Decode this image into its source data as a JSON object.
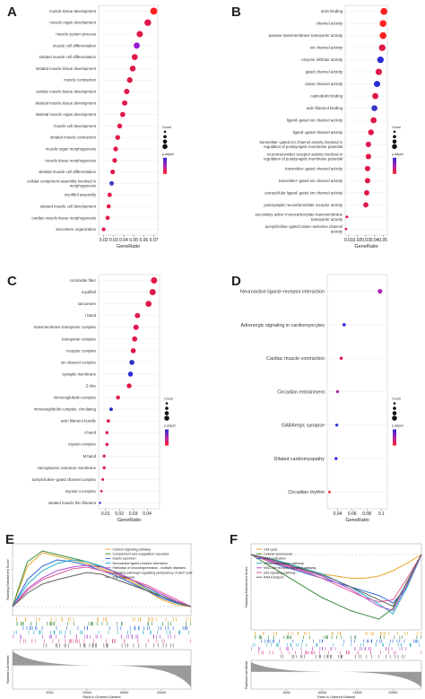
{
  "figure": {
    "panels": [
      "A",
      "B",
      "C",
      "D",
      "E",
      "F"
    ]
  },
  "chart_data": [
    {
      "panel": "A",
      "type": "scatter",
      "title": "",
      "xlabel": "GeneRatio",
      "ylabel": "",
      "xticks": [
        0.02,
        0.03,
        0.04,
        0.05,
        0.06,
        0.07
      ],
      "xlim": [
        0.015,
        0.074
      ],
      "legend": {
        "position": "right",
        "size_title": "Count",
        "color_title": "p.adjust"
      },
      "categories": [
        "muscle tissue development",
        "muscle organ development",
        "muscle system process",
        "muscle cell differentiation",
        "striated muscle cell differentiation",
        "striated muscle tissue development",
        "muscle contraction",
        "cardiac muscle tissue development",
        "skeletal muscle tissue development",
        "skeletal muscle organ development",
        "muscle cell development",
        "striated muscle contraction",
        "muscle organ morphogenesis",
        "muscle tissue morphogenesis",
        "skeletal muscle cell differentiation",
        "cellular component assembly involved in morphogenesis",
        "myofibril assembly",
        "striated muscle cell development",
        "cardiac muscle tissue morphogenesis",
        "sarcomere organization"
      ],
      "x": [
        0.07,
        0.064,
        0.056,
        0.053,
        0.051,
        0.049,
        0.046,
        0.043,
        0.041,
        0.039,
        0.036,
        0.034,
        0.032,
        0.031,
        0.029,
        0.028,
        0.026,
        0.025,
        0.024,
        0.02
      ],
      "count": [
        40,
        36,
        32,
        30,
        29,
        28,
        26,
        24,
        23,
        22,
        20,
        19,
        18,
        18,
        17,
        16,
        15,
        14,
        14,
        11
      ],
      "color": [
        "#ff2020",
        "#e0184a",
        "#e0184a",
        "#9a1ad0",
        "#e0184a",
        "#e0184a",
        "#e0184a",
        "#e0184a",
        "#e0184a",
        "#e0184a",
        "#e0184a",
        "#e0184a",
        "#e0184a",
        "#e0184a",
        "#e0184a",
        "#3838c8",
        "#e0184a",
        "#e0184a",
        "#e0184a",
        "#e0184a"
      ]
    },
    {
      "panel": "B",
      "type": "scatter",
      "title": "",
      "xlabel": "GeneRatio",
      "ylabel": "",
      "xticks": [
        0.01,
        0.02,
        0.03,
        0.04,
        0.05
      ],
      "xlim": [
        0.006,
        0.055
      ],
      "legend": {
        "position": "right",
        "size_title": "Count",
        "color_title": "p.adjust"
      },
      "categories": [
        "actin binding",
        "channel activity",
        "passive transmembrane transporter activity",
        "ion channel activity",
        "enzyme inhibitor activity",
        "gated channel activity",
        "cation channel activity",
        "calmodulin binding",
        "actin filament binding",
        "ligand−gated ion channel activity",
        "ligand−gated channel activity",
        "transmitter−gated ion channel activity involved in regulation of postsynaptic membrane potential",
        "neurotransmitter receptor activity involved in regulation of postsynaptic membrane potential",
        "transmitter−gated channel activity",
        "transmitter−gated ion channel activity",
        "extracellular ligand−gated ion channel activity",
        "postsynaptic neurotransmitter receptor activity",
        "secondary active monocarboxylate transmembrane transporter activity",
        "acetylcholine−gated cation−selective channel activity"
      ],
      "x": [
        0.051,
        0.05,
        0.05,
        0.049,
        0.047,
        0.045,
        0.043,
        0.041,
        0.04,
        0.039,
        0.036,
        0.033,
        0.033,
        0.032,
        0.032,
        0.031,
        0.03,
        0.008,
        0.007
      ],
      "count": [
        38,
        37,
        37,
        36,
        34,
        33,
        32,
        30,
        29,
        29,
        27,
        24,
        24,
        24,
        24,
        23,
        22,
        6,
        5
      ],
      "color": [
        "#ff2020",
        "#ff2020",
        "#ff2020",
        "#e0184a",
        "#2a2ad8",
        "#e0184a",
        "#2a2ad8",
        "#e0184a",
        "#3838c8",
        "#e0184a",
        "#e0184a",
        "#e0184a",
        "#e0184a",
        "#e0184a",
        "#e0184a",
        "#e0184a",
        "#e0184a",
        "#e0184a",
        "#e0184a"
      ]
    },
    {
      "panel": "C",
      "type": "scatter",
      "title": "",
      "xlabel": "GeneRatio",
      "ylabel": "",
      "xticks": [
        0.01,
        0.02,
        0.03,
        0.04
      ],
      "xlim": [
        0.005,
        0.049
      ],
      "legend": {
        "position": "right",
        "size_title": "Count",
        "color_title": "p.adjust"
      },
      "categories": [
        "contractile fiber",
        "myofibril",
        "sarcomere",
        "I band",
        "transmembrane transporter complex",
        "transporter complex",
        "receptor complex",
        "ion channel complex",
        "synaptic membrane",
        "Z disc",
        "immunoglobulin complex",
        "immunoglobulin complex, circulating",
        "actin filament bundle",
        "A band",
        "myosin complex",
        "M band",
        "sarcoplasmic reticulum membrane",
        "acetylcholine−gated channel complex",
        "myosin II complex",
        "striated muscle thin filament"
      ],
      "x": [
        0.045,
        0.044,
        0.041,
        0.033,
        0.032,
        0.031,
        0.03,
        0.029,
        0.028,
        0.027,
        0.019,
        0.014,
        0.012,
        0.011,
        0.011,
        0.009,
        0.009,
        0.008,
        0.007,
        0.006
      ],
      "count": [
        32,
        31,
        29,
        23,
        23,
        22,
        21,
        21,
        20,
        19,
        13,
        10,
        9,
        8,
        8,
        7,
        7,
        6,
        5,
        4
      ],
      "color": [
        "#e0184a",
        "#e0184a",
        "#e0184a",
        "#e0184a",
        "#e0184a",
        "#e0184a",
        "#e0184a",
        "#3030c8",
        "#2a2ad8",
        "#e0184a",
        "#e0184a",
        "#3030c8",
        "#e0184a",
        "#e0184a",
        "#e0184a",
        "#e0184a",
        "#e0184a",
        "#e0184a",
        "#e0184a",
        "#2a2ad8"
      ]
    },
    {
      "panel": "D",
      "type": "scatter",
      "title": "",
      "xlabel": "GeneRatio",
      "ylabel": "",
      "xticks": [
        0.04,
        0.06,
        0.08,
        0.1
      ],
      "xlim": [
        0.026,
        0.108
      ],
      "legend": {
        "position": "right",
        "size_title": "Count",
        "color_title": "p.adjust"
      },
      "categories": [
        "Neuroactive ligand−receptor interaction",
        "Adrenergic signaling in cardiomyocytes",
        "Cardiac muscle contraction",
        "Circadian entrainment",
        "GABAergic synapse",
        "Dilated cardiomyopathy",
        "Circadian rhythm"
      ],
      "x": [
        0.098,
        0.049,
        0.045,
        0.04,
        0.039,
        0.038,
        0.029
      ],
      "count": [
        18,
        9,
        8,
        7,
        7,
        7,
        5
      ],
      "color": [
        "#b028b0",
        "#2a2ad8",
        "#e0184a",
        "#a020a0",
        "#2a2ad8",
        "#2a2ad8",
        "#ff2020"
      ]
    },
    {
      "panel": "E",
      "type": "line",
      "title": "",
      "xlabel": "Rank in Ordered Dataset",
      "ylabel": "Running Enrichment Score",
      "ylabel2": "Ranked List Metric",
      "xticks": [
        5000,
        10000,
        15000,
        20000
      ],
      "xlim": [
        0,
        24000
      ],
      "ylim": [
        -0.1,
        0.7
      ],
      "legend": {
        "position": "top-right"
      },
      "series": [
        {
          "name": "Calcium signaling pathway",
          "color": "#e8a72a",
          "x": [
            0,
            2000,
            4000,
            6000,
            8000,
            10000,
            12000,
            14000,
            16000,
            18000,
            20000,
            22000,
            24000
          ],
          "values": [
            0,
            0.45,
            0.6,
            0.56,
            0.52,
            0.48,
            0.42,
            0.36,
            0.28,
            0.18,
            0.08,
            0.02,
            0
          ]
        },
        {
          "name": "Complement and coagulation cascades",
          "color": "#3a8a3a",
          "x": [
            0,
            2000,
            4000,
            6000,
            8000,
            10000,
            12000,
            14000,
            16000,
            18000,
            20000,
            22000,
            24000
          ],
          "values": [
            0,
            0.5,
            0.62,
            0.58,
            0.54,
            0.5,
            0.44,
            0.38,
            0.3,
            0.2,
            0.1,
            0.04,
            0
          ]
        },
        {
          "name": "Insulin secretion",
          "color": "#2a6ad8",
          "x": [
            0,
            2000,
            4000,
            6000,
            8000,
            10000,
            12000,
            14000,
            16000,
            18000,
            20000,
            22000,
            24000
          ],
          "values": [
            0,
            0.3,
            0.45,
            0.52,
            0.5,
            0.46,
            0.4,
            0.34,
            0.26,
            0.18,
            0.1,
            0.04,
            0
          ]
        },
        {
          "name": "Neuroactive ligand-receptor interaction",
          "color": "#2ab0c8",
          "x": [
            0,
            2000,
            4000,
            6000,
            8000,
            10000,
            12000,
            14000,
            16000,
            18000,
            20000,
            22000,
            24000
          ],
          "values": [
            0,
            0.25,
            0.4,
            0.48,
            0.52,
            0.5,
            0.45,
            0.38,
            0.3,
            0.22,
            0.12,
            0.05,
            0
          ]
        },
        {
          "name": "Pathways of neurodegeneration - multiple diseases",
          "color": "#b050d0",
          "x": [
            0,
            2000,
            4000,
            6000,
            8000,
            10000,
            12000,
            14000,
            16000,
            18000,
            20000,
            22000,
            24000
          ],
          "values": [
            0,
            0.2,
            0.32,
            0.4,
            0.44,
            0.46,
            0.44,
            0.38,
            0.3,
            0.22,
            0.14,
            0.06,
            0
          ]
        },
        {
          "name": "Signaling pathways regulating pluripotency of stem cells",
          "color": "#e05a9a",
          "x": [
            0,
            2000,
            4000,
            6000,
            8000,
            10000,
            12000,
            14000,
            16000,
            18000,
            20000,
            22000,
            24000
          ],
          "values": [
            0,
            0.18,
            0.3,
            0.36,
            0.42,
            0.44,
            0.4,
            0.36,
            0.3,
            0.24,
            0.16,
            0.08,
            0
          ]
        },
        {
          "name": "Thermogenesis",
          "color": "#606060",
          "x": [
            0,
            2000,
            4000,
            6000,
            8000,
            10000,
            12000,
            14000,
            16000,
            18000,
            20000,
            22000,
            24000
          ],
          "values": [
            0,
            0.15,
            0.25,
            0.3,
            0.34,
            0.38,
            0.36,
            0.3,
            0.24,
            0.18,
            0.12,
            0.05,
            0
          ]
        }
      ]
    },
    {
      "panel": "F",
      "type": "line",
      "title": "",
      "xlabel": "Rank in Ordered Dataset",
      "ylabel": "Running Enrichment Score",
      "ylabel2": "Ranked List Metric",
      "xticks": [
        5000,
        10000,
        15000,
        20000
      ],
      "xlim": [
        0,
        24000
      ],
      "ylim": [
        -0.7,
        0.1
      ],
      "legend": {
        "position": "top-left"
      },
      "series": [
        {
          "name": "Cell cycle",
          "color": "#e8a72a",
          "x": [
            0,
            2000,
            4000,
            6000,
            8000,
            10000,
            12000,
            14000,
            16000,
            18000,
            20000,
            22000,
            24000
          ],
          "values": [
            0,
            -0.04,
            -0.08,
            -0.12,
            -0.15,
            -0.18,
            -0.2,
            -0.22,
            -0.22,
            -0.2,
            -0.15,
            -0.08,
            0
          ]
        },
        {
          "name": "Cellular senescence",
          "color": "#3a8a3a",
          "x": [
            0,
            2000,
            4000,
            6000,
            8000,
            10000,
            12000,
            14000,
            16000,
            18000,
            20000,
            22000,
            24000
          ],
          "values": [
            0,
            -0.08,
            -0.16,
            -0.24,
            -0.32,
            -0.4,
            -0.46,
            -0.52,
            -0.56,
            -0.6,
            -0.5,
            -0.25,
            0
          ]
        },
        {
          "name": "DNA replication",
          "color": "#2a6ad8",
          "x": [
            0,
            2000,
            4000,
            6000,
            8000,
            10000,
            12000,
            14000,
            16000,
            18000,
            20000,
            22000,
            24000
          ],
          "values": [
            0,
            -0.05,
            -0.1,
            -0.14,
            -0.18,
            -0.22,
            -0.26,
            -0.3,
            -0.34,
            -0.38,
            -0.45,
            -0.3,
            0
          ]
        },
        {
          "name": "mRNA surveillance pathway",
          "color": "#2ab0c8",
          "x": [
            0,
            2000,
            4000,
            6000,
            8000,
            10000,
            12000,
            14000,
            16000,
            18000,
            20000,
            22000,
            24000
          ],
          "values": [
            0,
            -0.03,
            -0.06,
            -0.1,
            -0.14,
            -0.18,
            -0.24,
            -0.3,
            -0.38,
            -0.46,
            -0.55,
            -0.3,
            0
          ]
        },
        {
          "name": "NOD-like receptor signaling pathway",
          "color": "#b050d0",
          "x": [
            0,
            2000,
            4000,
            6000,
            8000,
            10000,
            12000,
            14000,
            16000,
            18000,
            20000,
            22000,
            24000
          ],
          "values": [
            0,
            -0.04,
            -0.08,
            -0.12,
            -0.16,
            -0.2,
            -0.26,
            -0.32,
            -0.4,
            -0.48,
            -0.52,
            -0.28,
            0
          ]
        },
        {
          "name": "p53 signaling pathway",
          "color": "#e05a9a",
          "x": [
            0,
            2000,
            4000,
            6000,
            8000,
            10000,
            12000,
            14000,
            16000,
            18000,
            20000,
            22000,
            24000
          ],
          "values": [
            0,
            -0.05,
            -0.09,
            -0.13,
            -0.17,
            -0.22,
            -0.28,
            -0.34,
            -0.4,
            -0.44,
            -0.42,
            -0.22,
            0
          ]
        },
        {
          "name": "RNA transport",
          "color": "#606060",
          "x": [
            0,
            2000,
            4000,
            6000,
            8000,
            10000,
            12000,
            14000,
            16000,
            18000,
            20000,
            22000,
            24000
          ],
          "values": [
            0,
            -0.03,
            -0.07,
            -0.11,
            -0.15,
            -0.19,
            -0.24,
            -0.3,
            -0.36,
            -0.42,
            -0.48,
            -0.26,
            0
          ]
        }
      ]
    }
  ]
}
